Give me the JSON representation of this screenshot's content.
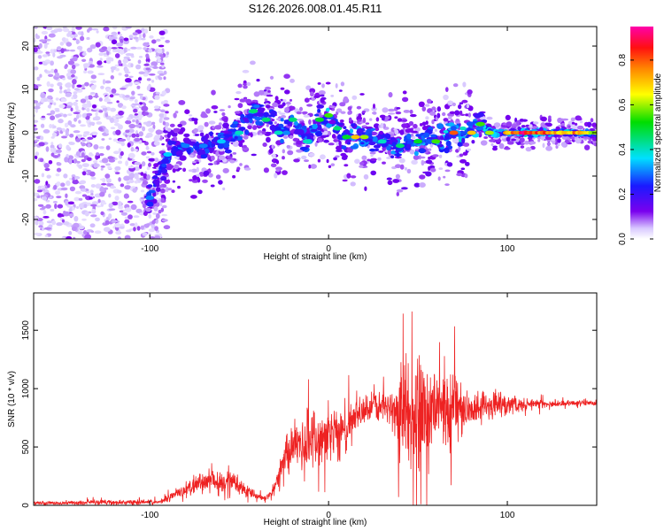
{
  "title": "S126.2026.008.01.45.R11",
  "colors": {
    "snr_line": "#ee2222",
    "axes": "#000000",
    "background": "#ffffff"
  },
  "chart_data": [
    {
      "type": "heatmap",
      "xlabel": "Height of straight line (km)",
      "ylabel": "Frequency (Hz)",
      "xlim": [
        -165,
        150
      ],
      "ylim": [
        -24.5,
        24.5
      ],
      "xticks": [
        -100,
        0,
        100
      ],
      "yticks": [
        -20,
        -10,
        0,
        10,
        20
      ],
      "colorbar": {
        "label": "Normalized spectral amplitude",
        "range": [
          0,
          0.95
        ],
        "ticks": [
          0.0,
          0.2,
          0.4,
          0.6,
          0.8
        ]
      },
      "ridge": {
        "x": [
          -100,
          -90,
          -80,
          -70,
          -60,
          -50,
          -42,
          -35,
          -28,
          -20,
          -12,
          -5,
          0,
          5,
          10,
          15,
          20,
          30,
          40,
          50,
          60,
          70,
          80,
          85,
          90,
          100,
          110,
          120,
          130,
          140,
          150
        ],
        "freq": [
          -15,
          -5,
          -3,
          -3,
          -2,
          0,
          5,
          3,
          0,
          3,
          -2,
          3,
          4,
          1,
          -1,
          -1,
          -1,
          -2,
          -3,
          -2,
          -2,
          0,
          0,
          2,
          0,
          0,
          0,
          0,
          0,
          0,
          0
        ],
        "amplitude": [
          0.3,
          0.35,
          0.3,
          0.3,
          0.35,
          0.4,
          0.45,
          0.45,
          0.4,
          0.45,
          0.4,
          0.5,
          0.55,
          0.45,
          0.5,
          0.7,
          0.6,
          0.4,
          0.45,
          0.5,
          0.55,
          0.8,
          0.7,
          0.55,
          0.6,
          0.75,
          0.9,
          0.85,
          0.7,
          0.8,
          0.6
        ]
      }
    },
    {
      "type": "line",
      "xlabel": "Height of straight line (km)",
      "ylabel": "SNR (10 * v/v)",
      "xlim": [
        -165,
        150
      ],
      "ylim": [
        0,
        1820
      ],
      "xticks": [
        -100,
        0,
        100
      ],
      "yticks": [
        0,
        500,
        1000,
        1500
      ],
      "series": [
        {
          "name": "SNR",
          "x": [
            -165,
            -150,
            -130,
            -110,
            -95,
            -85,
            -75,
            -65,
            -55,
            -45,
            -40,
            -35,
            -30,
            -25,
            -20,
            -15,
            -10,
            -5,
            0,
            5,
            10,
            15,
            20,
            25,
            30,
            35,
            40,
            45,
            50,
            55,
            60,
            65,
            70,
            75,
            80,
            85,
            90,
            95,
            100,
            110,
            120,
            130,
            140,
            150
          ],
          "mean": [
            20,
            20,
            25,
            25,
            30,
            100,
            180,
            220,
            200,
            130,
            80,
            60,
            150,
            400,
            500,
            500,
            550,
            550,
            600,
            600,
            650,
            800,
            800,
            850,
            850,
            850,
            800,
            800,
            850,
            800,
            850,
            800,
            850,
            820,
            820,
            850,
            850,
            850,
            850,
            870,
            870,
            870,
            880,
            880
          ],
          "spread": [
            20,
            20,
            25,
            25,
            25,
            60,
            100,
            120,
            100,
            60,
            40,
            30,
            80,
            250,
            300,
            300,
            300,
            280,
            280,
            280,
            300,
            200,
            150,
            150,
            150,
            200,
            450,
            600,
            650,
            650,
            500,
            400,
            450,
            250,
            150,
            150,
            150,
            150,
            120,
            60,
            40,
            30,
            30,
            30
          ]
        }
      ]
    }
  ]
}
